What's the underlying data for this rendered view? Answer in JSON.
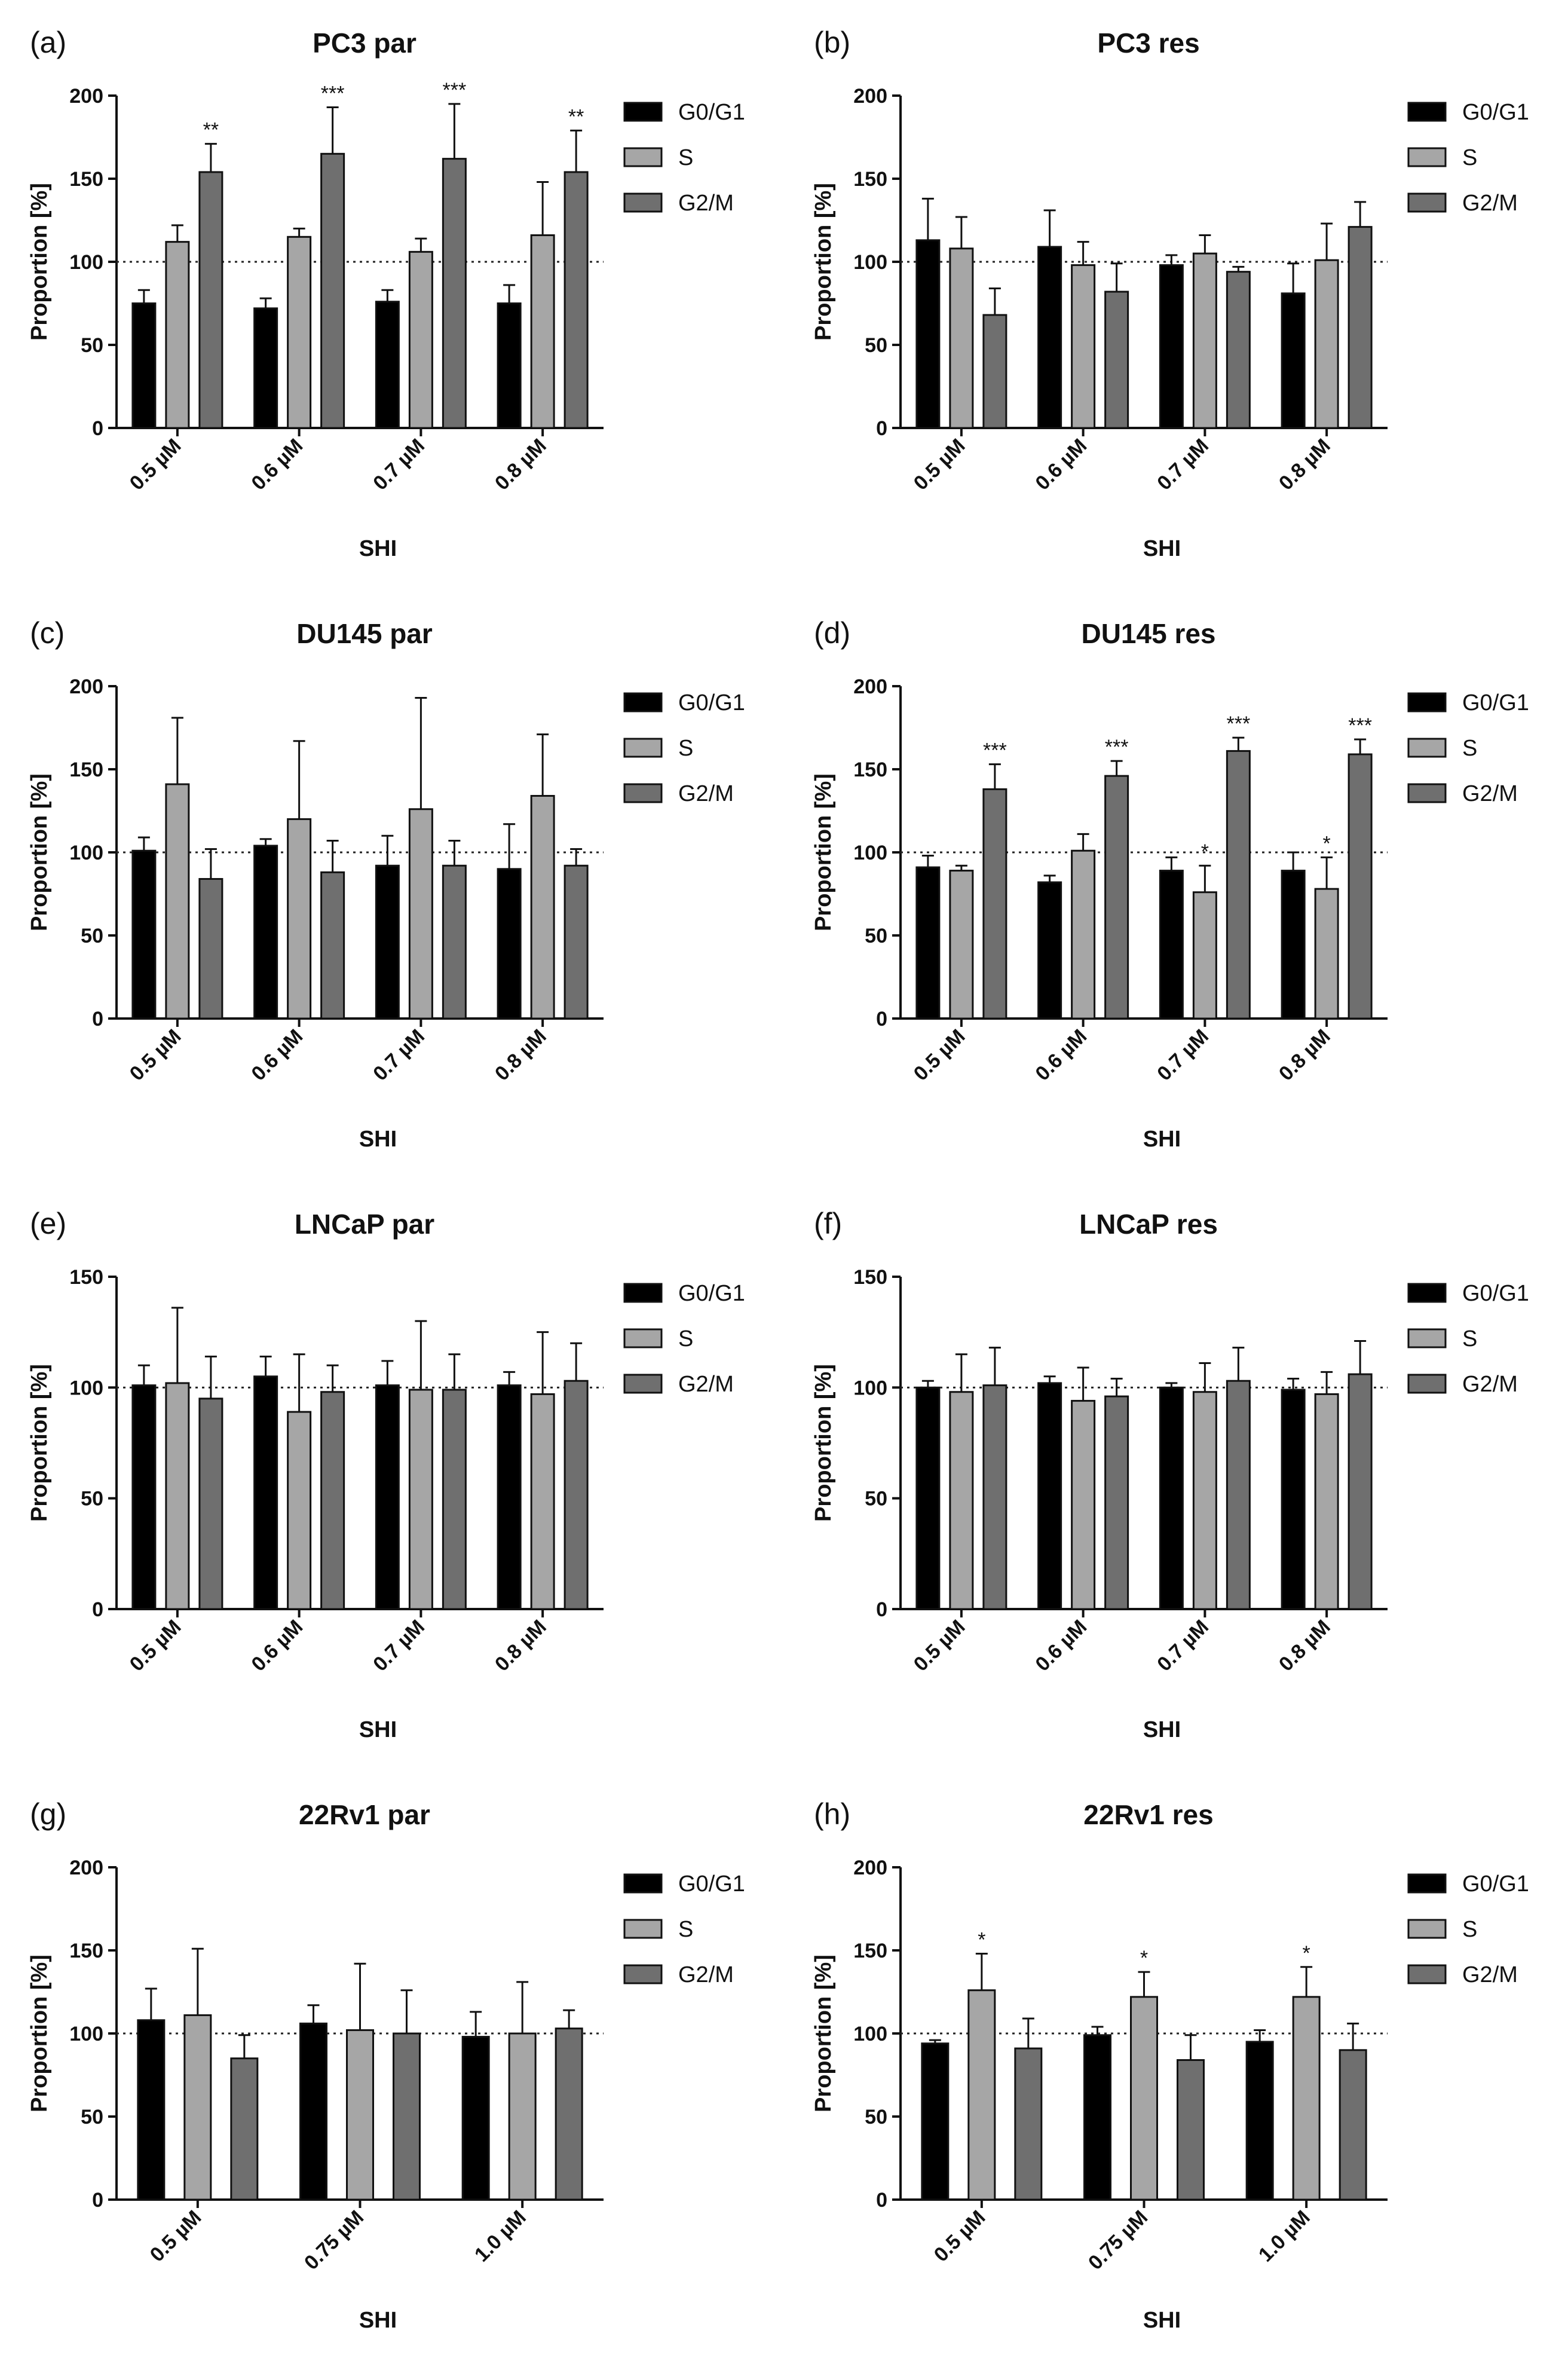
{
  "chart_data": [
    {
      "panel": "(a)",
      "title": "PC3 par",
      "type": "bar",
      "xlabel": "SHI",
      "ylabel": "Proportion [%]",
      "ylim": [
        0,
        200
      ],
      "yticks": [
        0,
        50,
        100,
        150,
        200
      ],
      "reference_line": 100,
      "categories": [
        "0.5 µM",
        "0.6 µM",
        "0.7 µM",
        "0.8 µM"
      ],
      "series": [
        {
          "name": "G0/G1",
          "color": "#000000",
          "values": [
            75,
            72,
            76,
            75
          ],
          "errors": [
            8,
            6,
            7,
            11
          ],
          "significance": [
            "",
            "",
            "",
            ""
          ]
        },
        {
          "name": "S",
          "color": "#a6a6a6",
          "values": [
            112,
            115,
            106,
            116
          ],
          "errors": [
            10,
            5,
            8,
            32
          ],
          "significance": [
            "",
            "",
            "",
            ""
          ]
        },
        {
          "name": "G2/M",
          "color": "#6f6f6f",
          "values": [
            154,
            165,
            162,
            154
          ],
          "errors": [
            17,
            28,
            33,
            25
          ],
          "significance": [
            "**",
            "***",
            "***",
            "**"
          ]
        }
      ]
    },
    {
      "panel": "(b)",
      "title": "PC3 res",
      "type": "bar",
      "xlabel": "SHI",
      "ylabel": "Proportion [%]",
      "ylim": [
        0,
        200
      ],
      "yticks": [
        0,
        50,
        100,
        150,
        200
      ],
      "reference_line": 100,
      "categories": [
        "0.5 µM",
        "0.6 µM",
        "0.7 µM",
        "0.8 µM"
      ],
      "series": [
        {
          "name": "G0/G1",
          "color": "#000000",
          "values": [
            113,
            109,
            98,
            81
          ],
          "errors": [
            25,
            22,
            6,
            18
          ],
          "significance": [
            "",
            "",
            "",
            ""
          ]
        },
        {
          "name": "S",
          "color": "#a6a6a6",
          "values": [
            108,
            98,
            105,
            101
          ],
          "errors": [
            19,
            14,
            11,
            22
          ],
          "significance": [
            "",
            "",
            "",
            ""
          ]
        },
        {
          "name": "G2/M",
          "color": "#6f6f6f",
          "values": [
            68,
            82,
            94,
            121
          ],
          "errors": [
            16,
            17,
            3,
            15
          ],
          "significance": [
            "",
            "",
            "",
            ""
          ]
        }
      ]
    },
    {
      "panel": "(c)",
      "title": "DU145 par",
      "type": "bar",
      "xlabel": "SHI",
      "ylabel": "Proportion [%]",
      "ylim": [
        0,
        200
      ],
      "yticks": [
        0,
        50,
        100,
        150,
        200
      ],
      "reference_line": 100,
      "categories": [
        "0.5 µM",
        "0.6 µM",
        "0.7 µM",
        "0.8 µM"
      ],
      "series": [
        {
          "name": "G0/G1",
          "color": "#000000",
          "values": [
            101,
            104,
            92,
            90
          ],
          "errors": [
            8,
            4,
            18,
            27
          ],
          "significance": [
            "",
            "",
            "",
            ""
          ]
        },
        {
          "name": "S",
          "color": "#a6a6a6",
          "values": [
            141,
            120,
            126,
            134
          ],
          "errors": [
            40,
            47,
            67,
            37
          ],
          "significance": [
            "",
            "",
            "",
            ""
          ]
        },
        {
          "name": "G2/M",
          "color": "#6f6f6f",
          "values": [
            84,
            88,
            92,
            92
          ],
          "errors": [
            18,
            19,
            15,
            10
          ],
          "significance": [
            "",
            "",
            "",
            ""
          ]
        }
      ]
    },
    {
      "panel": "(d)",
      "title": "DU145 res",
      "type": "bar",
      "xlabel": "SHI",
      "ylabel": "Proportion [%]",
      "ylim": [
        0,
        200
      ],
      "yticks": [
        0,
        50,
        100,
        150,
        200
      ],
      "reference_line": 100,
      "categories": [
        "0.5 µM",
        "0.6 µM",
        "0.7 µM",
        "0.8 µM"
      ],
      "series": [
        {
          "name": "G0/G1",
          "color": "#000000",
          "values": [
            91,
            82,
            89,
            89
          ],
          "errors": [
            7,
            4,
            8,
            11
          ],
          "significance": [
            "",
            "",
            "",
            ""
          ]
        },
        {
          "name": "S",
          "color": "#a6a6a6",
          "values": [
            89,
            101,
            76,
            78
          ],
          "errors": [
            3,
            10,
            16,
            19
          ],
          "significance": [
            "",
            "",
            "*",
            "*"
          ]
        },
        {
          "name": "G2/M",
          "color": "#6f6f6f",
          "values": [
            138,
            146,
            161,
            159
          ],
          "errors": [
            15,
            9,
            8,
            9
          ],
          "significance": [
            "***",
            "***",
            "***",
            "***"
          ]
        }
      ]
    },
    {
      "panel": "(e)",
      "title": "LNCaP par",
      "type": "bar",
      "xlabel": "SHI",
      "ylabel": "Proportion [%]",
      "ylim": [
        0,
        150
      ],
      "yticks": [
        0,
        50,
        100,
        150
      ],
      "reference_line": 100,
      "categories": [
        "0.5 µM",
        "0.6 µM",
        "0.7 µM",
        "0.8 µM"
      ],
      "series": [
        {
          "name": "G0/G1",
          "color": "#000000",
          "values": [
            101,
            105,
            101,
            101
          ],
          "errors": [
            9,
            9,
            11,
            6
          ],
          "significance": [
            "",
            "",
            "",
            ""
          ]
        },
        {
          "name": "S",
          "color": "#a6a6a6",
          "values": [
            102,
            89,
            99,
            97
          ],
          "errors": [
            34,
            26,
            31,
            28
          ],
          "significance": [
            "",
            "",
            "",
            ""
          ]
        },
        {
          "name": "G2/M",
          "color": "#6f6f6f",
          "values": [
            95,
            98,
            99,
            103
          ],
          "errors": [
            19,
            12,
            16,
            17
          ],
          "significance": [
            "",
            "",
            "",
            ""
          ]
        }
      ]
    },
    {
      "panel": "(f)",
      "title": "LNCaP res",
      "type": "bar",
      "xlabel": "SHI",
      "ylabel": "Proportion [%]",
      "ylim": [
        0,
        150
      ],
      "yticks": [
        0,
        50,
        100,
        150
      ],
      "reference_line": 100,
      "categories": [
        "0.5 µM",
        "0.6 µM",
        "0.7 µM",
        "0.8 µM"
      ],
      "series": [
        {
          "name": "G0/G1",
          "color": "#000000",
          "values": [
            100,
            102,
            100,
            99
          ],
          "errors": [
            3,
            3,
            2,
            5
          ],
          "significance": [
            "",
            "",
            "",
            ""
          ]
        },
        {
          "name": "S",
          "color": "#a6a6a6",
          "values": [
            98,
            94,
            98,
            97
          ],
          "errors": [
            17,
            15,
            13,
            10
          ],
          "significance": [
            "",
            "",
            "",
            ""
          ]
        },
        {
          "name": "G2/M",
          "color": "#6f6f6f",
          "values": [
            101,
            96,
            103,
            106
          ],
          "errors": [
            17,
            8,
            15,
            15
          ],
          "significance": [
            "",
            "",
            "",
            ""
          ]
        }
      ]
    },
    {
      "panel": "(g)",
      "title": "22Rv1 par",
      "type": "bar",
      "xlabel": "SHI",
      "ylabel": "Proportion [%]",
      "ylim": [
        0,
        200
      ],
      "yticks": [
        0,
        50,
        100,
        150,
        200
      ],
      "reference_line": 100,
      "categories": [
        "0.5 µM",
        "0.75 µM",
        "1.0 µM"
      ],
      "series": [
        {
          "name": "G0/G1",
          "color": "#000000",
          "values": [
            108,
            106,
            98
          ],
          "errors": [
            19,
            11,
            15
          ],
          "significance": [
            "",
            "",
            ""
          ]
        },
        {
          "name": "S",
          "color": "#a6a6a6",
          "values": [
            111,
            102,
            100
          ],
          "errors": [
            40,
            40,
            31
          ],
          "significance": [
            "",
            "",
            ""
          ]
        },
        {
          "name": "G2/M",
          "color": "#6f6f6f",
          "values": [
            85,
            100,
            103
          ],
          "errors": [
            14,
            26,
            11
          ],
          "significance": [
            "",
            "",
            ""
          ]
        }
      ]
    },
    {
      "panel": "(h)",
      "title": "22Rv1 res",
      "type": "bar",
      "xlabel": "SHI",
      "ylabel": "Proportion [%]",
      "ylim": [
        0,
        200
      ],
      "yticks": [
        0,
        50,
        100,
        150,
        200
      ],
      "reference_line": 100,
      "categories": [
        "0.5 µM",
        "0.75 µM",
        "1.0 µM"
      ],
      "series": [
        {
          "name": "G0/G1",
          "color": "#000000",
          "values": [
            94,
            99,
            95
          ],
          "errors": [
            2,
            5,
            7
          ],
          "significance": [
            "",
            "",
            ""
          ]
        },
        {
          "name": "S",
          "color": "#a6a6a6",
          "values": [
            126,
            122,
            122
          ],
          "errors": [
            22,
            15,
            18
          ],
          "significance": [
            "*",
            "*",
            "*"
          ]
        },
        {
          "name": "G2/M",
          "color": "#6f6f6f",
          "values": [
            91,
            84,
            90
          ],
          "errors": [
            18,
            15,
            16
          ],
          "significance": [
            "",
            "",
            ""
          ]
        }
      ]
    }
  ]
}
